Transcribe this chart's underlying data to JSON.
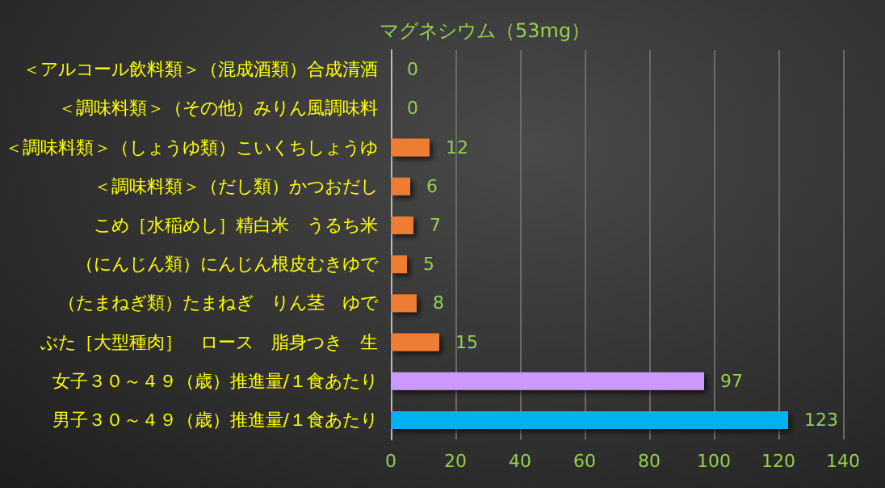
{
  "chart_data": {
    "type": "bar",
    "orientation": "horizontal",
    "title": "マグネシウム（53mg）",
    "categories": [
      "＜アルコール飲料類＞（混成酒類）合成清酒",
      "＜調味料類＞（その他）みりん風調味料",
      "＜調味料類＞（しょうゆ類）こいくちしょうゆ",
      "＜調味料類＞（だし類）かつおだし",
      "こめ［水稲めし］精白米　うるち米",
      "（にんじん類）にんじん根皮むきゆで",
      "（たまねぎ類）たまねぎ　りん茎　ゆで",
      "ぶた［大型種肉］　ロース　脂身つき　生",
      "女子３０～４９（歳）推進量/１食あたり",
      "男子３０～４９（歳）推進量/１食あたり"
    ],
    "values": [
      0,
      0,
      12,
      6,
      7,
      5,
      8,
      15,
      97,
      123
    ],
    "colors": [
      "#ed7d31",
      "#ed7d31",
      "#ed7d31",
      "#ed7d31",
      "#ed7d31",
      "#ed7d31",
      "#ed7d31",
      "#ed7d31",
      "#cc99ff",
      "#00b0f0"
    ],
    "xlim": [
      0,
      140
    ],
    "xticks": [
      0,
      20,
      40,
      60,
      80,
      100,
      120,
      140
    ],
    "grid": "x",
    "data_labels": true
  }
}
